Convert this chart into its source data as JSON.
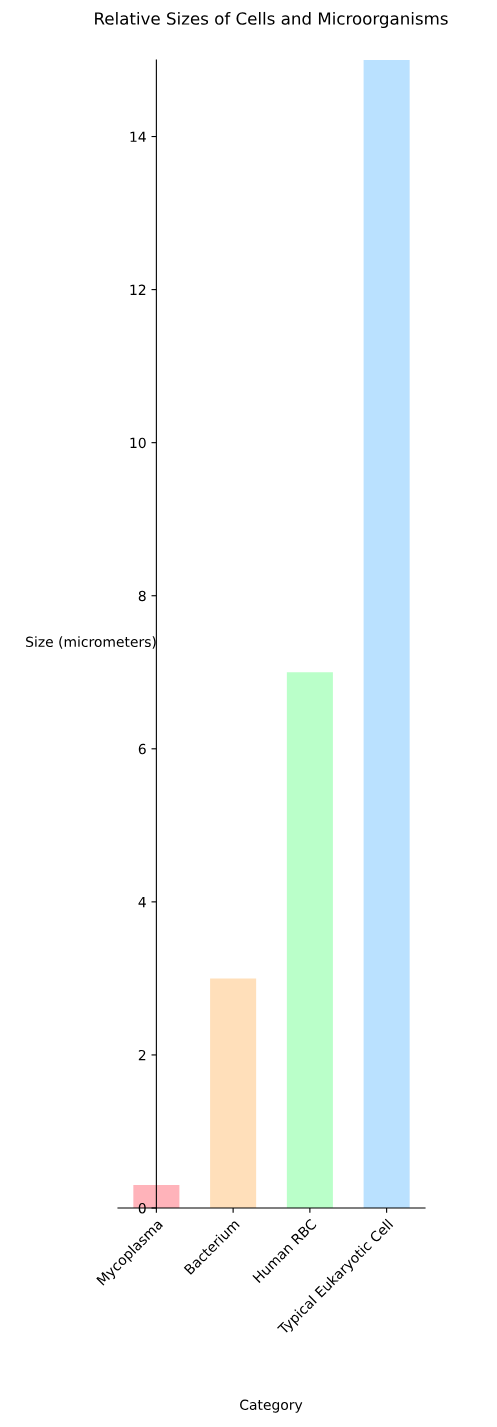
{
  "chart_data": {
    "type": "bar",
    "title": "Relative Sizes of Cells and Microorganisms",
    "xlabel": "Category",
    "ylabel": "Size (micrometers)",
    "categories": [
      "Mycoplasma",
      "Bacterium",
      "Human RBC",
      "Typical Eukaryotic Cell"
    ],
    "values": [
      0.3,
      3,
      7,
      15
    ],
    "colors": [
      "#ffb3ba",
      "#ffdfba",
      "#baffc9",
      "#bae1ff"
    ],
    "ylim": [
      0,
      15
    ],
    "yticks": [
      0,
      2,
      4,
      6,
      8,
      10,
      12,
      14
    ],
    "grid": false,
    "legend": false
  }
}
